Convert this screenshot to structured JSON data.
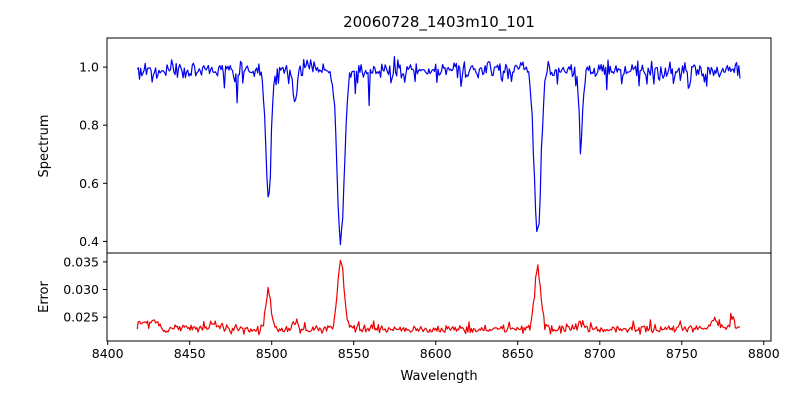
{
  "chart_data": {
    "type": "line",
    "title": "20060728_1403m10_101",
    "xlabel": "Wavelength",
    "grid": false,
    "legend": "none",
    "xlim": [
      8399.6,
      8804.4
    ],
    "xticks": [
      8400,
      8450,
      8500,
      8550,
      8600,
      8650,
      8700,
      8750,
      8800
    ],
    "xtick_labels": [
      "8400",
      "8450",
      "8500",
      "8550",
      "8600",
      "8650",
      "8700",
      "8750",
      "8800"
    ],
    "x_range": [
      8418,
      8786
    ],
    "sample_step": 0.7,
    "seed": 20060728,
    "panels": [
      {
        "ylabel": "Spectrum",
        "color": "#0000ee",
        "ylim": [
          0.36,
          1.1
        ],
        "yticks": [
          0.4,
          0.6,
          0.8,
          1.0
        ],
        "ytick_labels": [
          "0.4",
          "0.6",
          "0.8",
          "1.0"
        ],
        "continuum": 0.99,
        "noise_sigma": 0.014,
        "spike_prob": 0.1,
        "spike_scale": 0.05,
        "deep_spike_prob": 0.012,
        "absorption_lines": [
          {
            "center": 8498.0,
            "depth": 0.45,
            "width": 1.6
          },
          {
            "center": 8514.2,
            "depth": 0.12,
            "width": 1.0
          },
          {
            "center": 8542.1,
            "depth": 0.59,
            "width": 2.2
          },
          {
            "center": 8662.1,
            "depth": 0.57,
            "width": 2.0
          },
          {
            "center": 8688.6,
            "depth": 0.21,
            "width": 1.2
          }
        ]
      },
      {
        "ylabel": "Error",
        "color": "#ee0000",
        "ylim": [
          0.0207,
          0.0366
        ],
        "yticks": [
          0.025,
          0.03,
          0.035
        ],
        "ytick_labels": [
          "0.025",
          "0.030",
          "0.035"
        ],
        "baseline": 0.0228,
        "noise_sigma": 0.00035,
        "skew_prob": 0.12,
        "skew_scale": 0.0012,
        "peaks": [
          {
            "center": 8421.0,
            "height": 0.0012,
            "width": 2.0
          },
          {
            "center": 8428.0,
            "height": 0.0018,
            "width": 2.5
          },
          {
            "center": 8465.0,
            "height": 0.0012,
            "width": 2.0
          },
          {
            "center": 8498.0,
            "height": 0.0068,
            "width": 1.6
          },
          {
            "center": 8514.2,
            "height": 0.0015,
            "width": 1.2
          },
          {
            "center": 8542.1,
            "height": 0.0125,
            "width": 2.0
          },
          {
            "center": 8662.1,
            "height": 0.0108,
            "width": 1.9
          },
          {
            "center": 8688.6,
            "height": 0.0013,
            "width": 1.5
          },
          {
            "center": 8770.0,
            "height": 0.0018,
            "width": 2.0
          },
          {
            "center": 8781.0,
            "height": 0.002,
            "width": 1.5
          }
        ]
      }
    ]
  }
}
